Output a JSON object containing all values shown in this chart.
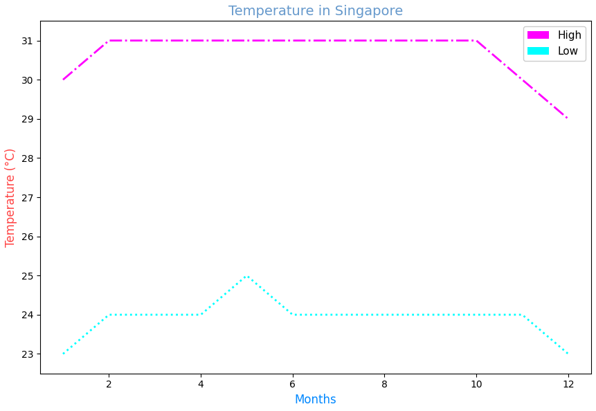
{
  "title": "Temperature in Singapore",
  "xlabel": "Months",
  "ylabel": "Temperature (°C)",
  "high_x": [
    1,
    2,
    3,
    4,
    5,
    6,
    7,
    8,
    9,
    10,
    11,
    12
  ],
  "high_y": [
    30,
    31,
    31,
    31,
    31,
    31,
    31,
    31,
    31,
    31,
    30,
    29
  ],
  "low_x": [
    1,
    2,
    3,
    4,
    5,
    6,
    7,
    8,
    9,
    10,
    11,
    12
  ],
  "low_y": [
    23,
    24,
    24,
    24,
    25,
    24,
    24,
    24,
    24,
    24,
    24,
    23
  ],
  "high_color": "#ff00ff",
  "low_color": "#00ffff",
  "high_linestyle": "-.",
  "low_linestyle": ":",
  "high_linewidth": 2,
  "low_linewidth": 2,
  "title_color": "#6699cc",
  "xlabel_color": "#0088ff",
  "ylabel_color": "#ff4444",
  "tick_label_color": "#000000",
  "legend_labels": [
    "High",
    "Low"
  ],
  "xlim": [
    0.5,
    12.5
  ],
  "ylim": [
    22.5,
    31.5
  ],
  "xticks": [
    2,
    4,
    6,
    8,
    10,
    12
  ],
  "yticks": [
    23,
    24,
    25,
    26,
    27,
    28,
    29,
    30,
    31
  ],
  "background_color": "#ffffff",
  "figsize": [
    8.61,
    5.94
  ],
  "dpi": 100
}
